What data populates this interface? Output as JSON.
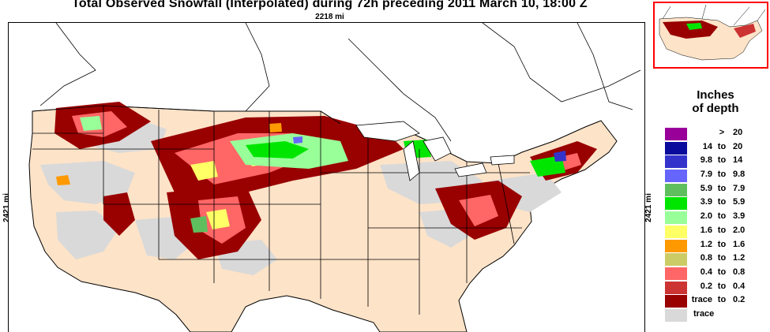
{
  "title": "Total Observed Snowfall (Interpolated) during 72h preceding 2011 March 10, 18:00 Z",
  "width_label": "2218 mi",
  "height_label": "2421 mi",
  "legend": {
    "title_line1": "Inches",
    "title_line2": "of depth",
    "entries": [
      {
        "lo": "",
        "to": ">",
        "hi": "20",
        "color": "#990099"
      },
      {
        "lo": "14",
        "to": "to",
        "hi": "20",
        "color": "#0a0a9c"
      },
      {
        "lo": "9.8",
        "to": "to",
        "hi": "14",
        "color": "#3333cc"
      },
      {
        "lo": "7.9",
        "to": "to",
        "hi": "9.8",
        "color": "#6666ff"
      },
      {
        "lo": "5.9",
        "to": "to",
        "hi": "7.9",
        "color": "#5fbf5f"
      },
      {
        "lo": "3.9",
        "to": "to",
        "hi": "5.9",
        "color": "#00e600"
      },
      {
        "lo": "2.0",
        "to": "to",
        "hi": "3.9",
        "color": "#99ff99"
      },
      {
        "lo": "1.6",
        "to": "to",
        "hi": "2.0",
        "color": "#ffff66"
      },
      {
        "lo": "1.2",
        "to": "to",
        "hi": "1.6",
        "color": "#ff9900"
      },
      {
        "lo": "0.8",
        "to": "to",
        "hi": "1.2",
        "color": "#cccc66"
      },
      {
        "lo": "0.4",
        "to": "to",
        "hi": "0.8",
        "color": "#ff6666"
      },
      {
        "lo": "0.2",
        "to": "to",
        "hi": "0.4",
        "color": "#cc3333"
      },
      {
        "lo": "trace",
        "to": "to",
        "hi": "0.2",
        "color": "#990000"
      },
      {
        "lo": "",
        "to": "",
        "hi": "",
        "only": "trace",
        "color": "#d9d9d9"
      }
    ]
  },
  "colors": {
    "land_no_snow": "#fde3c8",
    "trace": "#d9d9d9",
    "inset_border": "#ff0000"
  }
}
